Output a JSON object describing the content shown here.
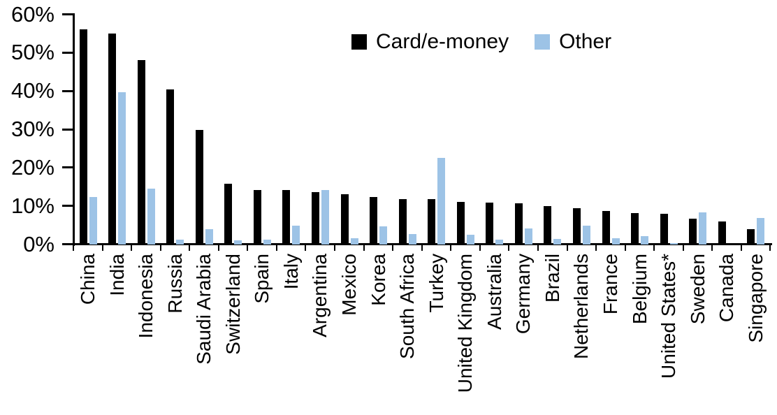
{
  "chart_data": {
    "type": "bar",
    "title": "",
    "xlabel": "",
    "ylabel": "",
    "ylim": [
      0,
      60
    ],
    "ytick_step": 10,
    "ytick_labels": [
      "0%",
      "10%",
      "20%",
      "30%",
      "40%",
      "50%",
      "60%"
    ],
    "grid": false,
    "legend_position": "top-center",
    "categories": [
      "China",
      "India",
      "Indonesia",
      "Russia",
      "Saudi Arabia",
      "Switzerland",
      "Spain",
      "Italy",
      "Argentina",
      "Mexico",
      "Korea",
      "South Africa",
      "Turkey",
      "United Kingdom",
      "Australia",
      "Germany",
      "Brazil",
      "Netherlands",
      "France",
      "Belgium",
      "United States*",
      "Sweden",
      "Canada",
      "Singapore"
    ],
    "series": [
      {
        "name": "Card/e-money",
        "color": "#000000",
        "values": [
          56.2,
          55.0,
          48.2,
          40.4,
          29.9,
          15.8,
          14.3,
          14.2,
          13.7,
          13.1,
          12.4,
          11.9,
          11.8,
          11.2,
          11.0,
          10.7,
          10.0,
          9.4,
          8.7,
          8.2,
          8.1,
          6.7,
          6.1,
          4.1
        ]
      },
      {
        "name": "Other",
        "color": "#9dc3e6",
        "values": [
          12.4,
          39.8,
          14.5,
          1.2,
          4.0,
          1.1,
          1.3,
          4.9,
          14.2,
          1.6,
          4.8,
          2.7,
          22.7,
          2.6,
          1.3,
          4.2,
          1.4,
          5.0,
          1.7,
          2.2,
          0.4,
          8.4,
          0.0,
          6.9
        ]
      }
    ]
  }
}
